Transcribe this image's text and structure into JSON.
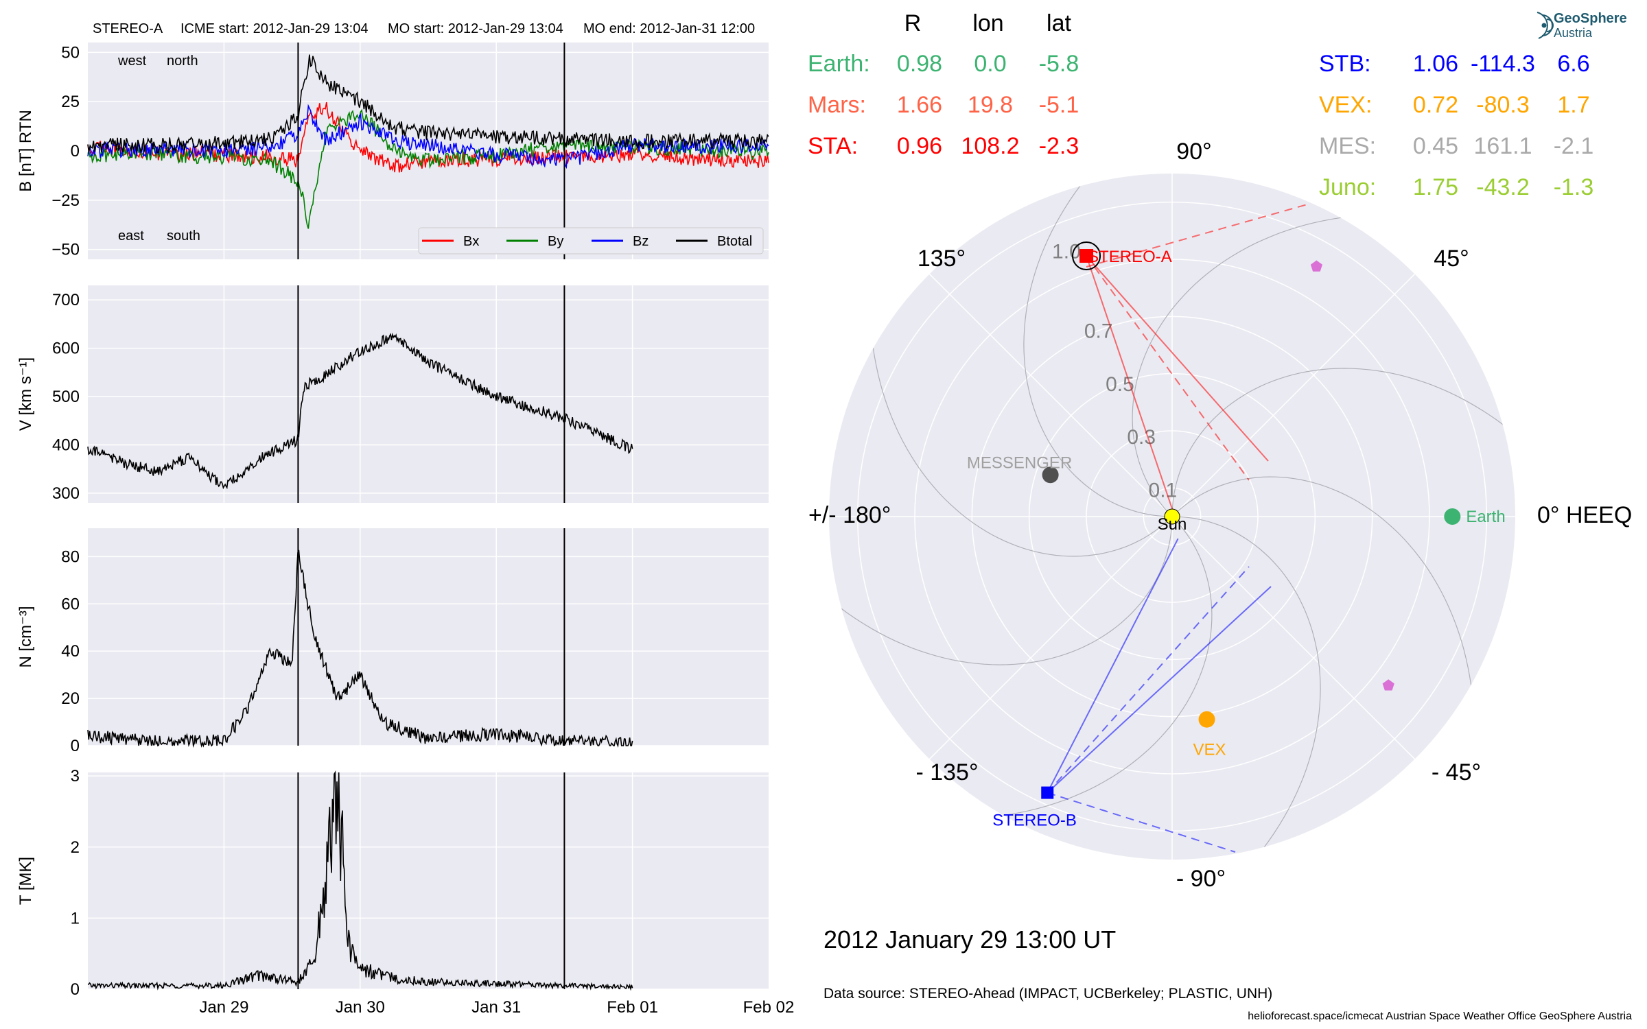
{
  "header": {
    "spacecraft": "STEREO-A",
    "icme_start": "ICME start: 2012-Jan-29 13:04",
    "mo_start": "MO start: 2012-Jan-29 13:04",
    "mo_end": "MO end: 2012-Jan-31 12:00"
  },
  "chart_data": [
    {
      "type": "line",
      "panel": "magnetic field",
      "ylabel": "B [nT] RTN",
      "ylim": [
        -55,
        55
      ],
      "yticks": [
        "50",
        "25",
        "0",
        "−25",
        "−50"
      ],
      "ytick_values": [
        50,
        25,
        0,
        -25,
        -50
      ],
      "corner_labels": {
        "top_left": "west",
        "top_right": "north",
        "bottom_left": "east",
        "bottom_right": "south"
      },
      "corner_colors": {
        "west": "#008000",
        "north": "#0000ff",
        "east": "#008000",
        "south": "#0000ff"
      },
      "grid": true,
      "legend_position": "lower-right",
      "series": [
        {
          "name": "Bx",
          "color": "#ff0000",
          "x": [
            "2012-01-28 00:00",
            "2012-01-28 12:00",
            "2012-01-29 00:00",
            "2012-01-29 08:00",
            "2012-01-29 13:04",
            "2012-01-29 15:00",
            "2012-01-29 18:00",
            "2012-01-30 00:00",
            "2012-01-30 06:00",
            "2012-01-30 12:00",
            "2012-01-31 00:00",
            "2012-01-31 12:00",
            "2012-02-01 00:00",
            "2012-02-01 12:00",
            "2012-02-02 00:00"
          ],
          "values": [
            2,
            -1,
            -2,
            -3,
            -5,
            18,
            22,
            0,
            -8,
            -5,
            -4,
            -3,
            -2,
            -4,
            -5
          ]
        },
        {
          "name": "By",
          "color": "#008000",
          "x": [
            "2012-01-28 00:00",
            "2012-01-28 12:00",
            "2012-01-29 00:00",
            "2012-01-29 08:00",
            "2012-01-29 13:04",
            "2012-01-29 15:00",
            "2012-01-29 18:00",
            "2012-01-30 00:00",
            "2012-01-30 06:00",
            "2012-01-30 12:00",
            "2012-01-31 00:00",
            "2012-01-31 12:00",
            "2012-02-01 00:00",
            "2012-02-01 12:00",
            "2012-02-02 00:00"
          ],
          "values": [
            -2,
            -2,
            -3,
            -5,
            -15,
            -38,
            10,
            20,
            0,
            -5,
            -2,
            3,
            2,
            1,
            -1
          ]
        },
        {
          "name": "Bz",
          "color": "#0000ff",
          "x": [
            "2012-01-28 00:00",
            "2012-01-28 12:00",
            "2012-01-29 00:00",
            "2012-01-29 08:00",
            "2012-01-29 13:04",
            "2012-01-29 15:00",
            "2012-01-29 18:00",
            "2012-01-30 00:00",
            "2012-01-30 06:00",
            "2012-01-30 12:00",
            "2012-01-31 00:00",
            "2012-01-31 12:00",
            "2012-02-01 00:00",
            "2012-02-01 12:00",
            "2012-02-02 00:00"
          ],
          "values": [
            0,
            1,
            0,
            2,
            8,
            20,
            5,
            15,
            5,
            3,
            -2,
            -5,
            3,
            2,
            3
          ]
        },
        {
          "name": "Btotal",
          "color": "#000000",
          "x": [
            "2012-01-28 00:00",
            "2012-01-28 12:00",
            "2012-01-29 00:00",
            "2012-01-29 08:00",
            "2012-01-29 13:04",
            "2012-01-29 15:00",
            "2012-01-29 18:00",
            "2012-01-30 00:00",
            "2012-01-30 06:00",
            "2012-01-30 12:00",
            "2012-01-31 00:00",
            "2012-01-31 12:00",
            "2012-02-01 00:00",
            "2012-02-01 12:00",
            "2012-02-02 00:00"
          ],
          "values": [
            3,
            3,
            4,
            6,
            18,
            47,
            35,
            25,
            12,
            9,
            7,
            6,
            5,
            5,
            5
          ]
        }
      ]
    },
    {
      "type": "line",
      "panel": "speed",
      "ylabel": "V [km s⁻¹]",
      "ylim": [
        280,
        730
      ],
      "yticks": [
        "700",
        "600",
        "500",
        "400",
        "300"
      ],
      "ytick_values": [
        700,
        600,
        500,
        400,
        300
      ],
      "grid": true,
      "series": [
        {
          "name": "",
          "color": "#000000",
          "x": [
            "2012-01-28 00:00",
            "2012-01-28 06:00",
            "2012-01-28 12:00",
            "2012-01-28 18:00",
            "2012-01-29 00:00",
            "2012-01-29 06:00",
            "2012-01-29 12:00",
            "2012-01-29 13:04",
            "2012-01-29 14:00",
            "2012-01-29 18:00",
            "2012-01-30 00:00",
            "2012-01-30 06:00",
            "2012-01-30 12:00",
            "2012-01-31 00:00",
            "2012-01-31 12:00",
            "2012-02-01 00:00"
          ],
          "values": [
            390,
            365,
            345,
            375,
            310,
            370,
            405,
            410,
            520,
            545,
            595,
            625,
            570,
            500,
            455,
            390
          ]
        }
      ]
    },
    {
      "type": "line",
      "panel": "density",
      "ylabel": "N [cm⁻³]",
      "ylim": [
        0,
        92
      ],
      "yticks": [
        "80",
        "60",
        "40",
        "20",
        "0"
      ],
      "ytick_values": [
        80,
        60,
        40,
        20,
        0
      ],
      "grid": true,
      "series": [
        {
          "name": "",
          "color": "#000000",
          "x": [
            "2012-01-28 00:00",
            "2012-01-28 12:00",
            "2012-01-29 00:00",
            "2012-01-29 04:00",
            "2012-01-29 08:00",
            "2012-01-29 12:00",
            "2012-01-29 13:04",
            "2012-01-29 16:00",
            "2012-01-29 20:00",
            "2012-01-30 00:00",
            "2012-01-30 04:00",
            "2012-01-30 12:00",
            "2012-01-31 00:00",
            "2012-01-31 12:00",
            "2012-02-01 00:00"
          ],
          "values": [
            4,
            2,
            2,
            15,
            40,
            35,
            82,
            45,
            20,
            30,
            10,
            3,
            5,
            2,
            1
          ]
        }
      ]
    },
    {
      "type": "line",
      "panel": "temperature",
      "ylabel": "T [MK]",
      "ylim": [
        0,
        3.05
      ],
      "yticks": [
        "3",
        "2",
        "1",
        "0"
      ],
      "ytick_values": [
        3,
        2,
        1,
        0
      ],
      "xticks": [
        "Jan 29",
        "Jan 30",
        "Jan 31",
        "Feb 01",
        "Feb 02"
      ],
      "xtick_values": [
        "2012-01-29 00:00",
        "2012-01-30 00:00",
        "2012-01-31 00:00",
        "2012-02-01 00:00",
        "2012-02-02 00:00"
      ],
      "xlim": [
        "2012-01-28 00:00",
        "2012-02-02 00:00"
      ],
      "grid": true,
      "series": [
        {
          "name": "",
          "color": "#000000",
          "x": [
            "2012-01-28 00:00",
            "2012-01-28 12:00",
            "2012-01-29 00:00",
            "2012-01-29 06:00",
            "2012-01-29 13:04",
            "2012-01-29 16:00",
            "2012-01-29 20:00",
            "2012-01-29 22:00",
            "2012-01-30 00:00",
            "2012-01-30 06:00",
            "2012-01-30 12:00",
            "2012-01-31 00:00",
            "2012-01-31 12:00",
            "2012-02-01 00:00"
          ],
          "values": [
            0.05,
            0.05,
            0.05,
            0.2,
            0.1,
            0.4,
            2.9,
            0.6,
            0.3,
            0.15,
            0.1,
            0.08,
            0.05,
            0.03
          ]
        }
      ]
    },
    {
      "type": "scatter",
      "panel": "polar position plot",
      "projection": "polar",
      "theta_ticks": [
        "90°",
        "45°",
        "0° HEEQ",
        "- 45°",
        "- 90°",
        "- 135°",
        "+/- 180°",
        "135°"
      ],
      "r_ticks": [
        "0.1",
        "0.3",
        "0.5",
        "0.7",
        "1.0"
      ],
      "r_tick_values": [
        0.1,
        0.3,
        0.5,
        0.7,
        1.0
      ],
      "rlim": [
        0,
        1.2
      ],
      "bodies": [
        {
          "name": "Sun",
          "color": "#ffff00",
          "r": 0,
          "lon": 0
        },
        {
          "name": "Earth",
          "color": "#3cb371",
          "r": 0.98,
          "lon": 0.0
        },
        {
          "name": "STEREO-A",
          "color": "#ff0000",
          "r": 0.96,
          "lon": 108.2
        },
        {
          "name": "STEREO-B",
          "color": "#0000ff",
          "r": 1.06,
          "lon": -114.3
        },
        {
          "name": "VEX",
          "color": "#ffa500",
          "r": 0.72,
          "lon": -80.3
        },
        {
          "name": "MESSENGER",
          "color": "#505050",
          "r": 0.45,
          "lon": 161.1
        },
        {
          "name": "",
          "color": "#da70d6",
          "r": 1.01,
          "lon": 60
        },
        {
          "name": "",
          "color": "#da70d6",
          "r": 0.96,
          "lon": -38
        }
      ]
    }
  ],
  "position_table": {
    "headers": [
      "R",
      "lon",
      "lat"
    ],
    "left": [
      {
        "label": "Earth:",
        "r": "0.98",
        "lon": "0.0",
        "lat": "-5.8",
        "color": "#3cb371"
      },
      {
        "label": "Mars:",
        "r": "1.66",
        "lon": "19.8",
        "lat": "-5.1",
        "color": "#ff6347"
      },
      {
        "label": "STA:",
        "r": "0.96",
        "lon": "108.2",
        "lat": "-2.3",
        "color": "#ff0000"
      }
    ],
    "right": [
      {
        "label": "STB:",
        "r": "1.06",
        "lon": "-114.3",
        "lat": "6.6",
        "color": "#0000ff"
      },
      {
        "label": "VEX:",
        "r": "0.72",
        "lon": "-80.3",
        "lat": "1.7",
        "color": "#ffa500"
      },
      {
        "label": "MES:",
        "r": "0.45",
        "lon": "161.1",
        "lat": "-2.1",
        "color": "#a9a9a9"
      },
      {
        "label": "Juno:",
        "r": "1.75",
        "lon": "-43.2",
        "lat": "-1.3",
        "color": "#9acd32"
      }
    ]
  },
  "polar_labels": {
    "a90": "90°",
    "a45": "45°",
    "a0": "0° HEEQ",
    "am45": "- 45°",
    "am90": "- 90°",
    "am135": "- 135°",
    "a180": "+/- 180°",
    "a135": "135°"
  },
  "body_labels": {
    "sun": "Sun",
    "earth": "Earth",
    "sta": "STEREO-A",
    "stb": "STEREO-B",
    "vex": "VEX",
    "messenger": "MESSENGER"
  },
  "footer": {
    "datetime": "2012 January 29  13:00 UT",
    "source": "Data source: STEREO-Ahead (IMPACT, UCBerkeley; PLASTIC, UNH)",
    "credit": "helioforecast.space/icmecat   Austrian Space Weather Office   GeoSphere Austria"
  },
  "logo": {
    "line1": "GeoSphere",
    "line2": "Austria"
  }
}
